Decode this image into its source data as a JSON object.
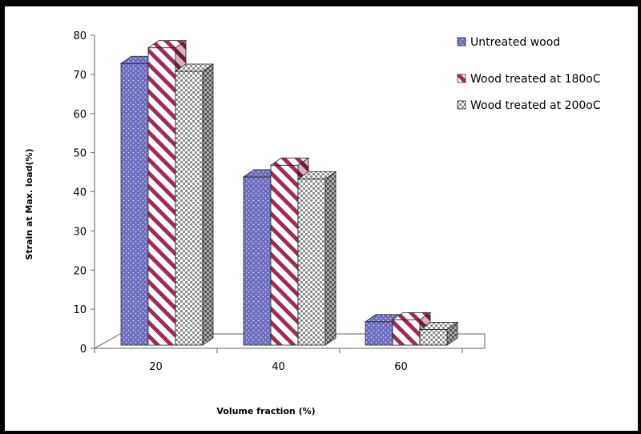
{
  "chart_data": {
    "type": "bar",
    "title": "",
    "xlabel": "Volume fraction (%)",
    "ylabel": "Strain at Max. load(%)",
    "categories": [
      "20",
      "40",
      "60"
    ],
    "ylim": [
      0,
      80
    ],
    "yticks": [
      0,
      10,
      20,
      30,
      40,
      50,
      60,
      70,
      80
    ],
    "series": [
      {
        "name": "Untreated wood",
        "values": [
          73,
          44,
          7
        ],
        "color": "#7b7bc8",
        "pattern": "dots"
      },
      {
        "name": "Wood treated at 180oC",
        "values": [
          77,
          47,
          7.5
        ],
        "color": "#a8325a",
        "pattern": "stripes"
      },
      {
        "name": "Wood treated at 200oC",
        "values": [
          71,
          43.5,
          5
        ],
        "color": "#9a9a9a",
        "pattern": "checker"
      }
    ],
    "grid": false,
    "legend_position": "top-right",
    "style": "3d-clustered-column"
  }
}
